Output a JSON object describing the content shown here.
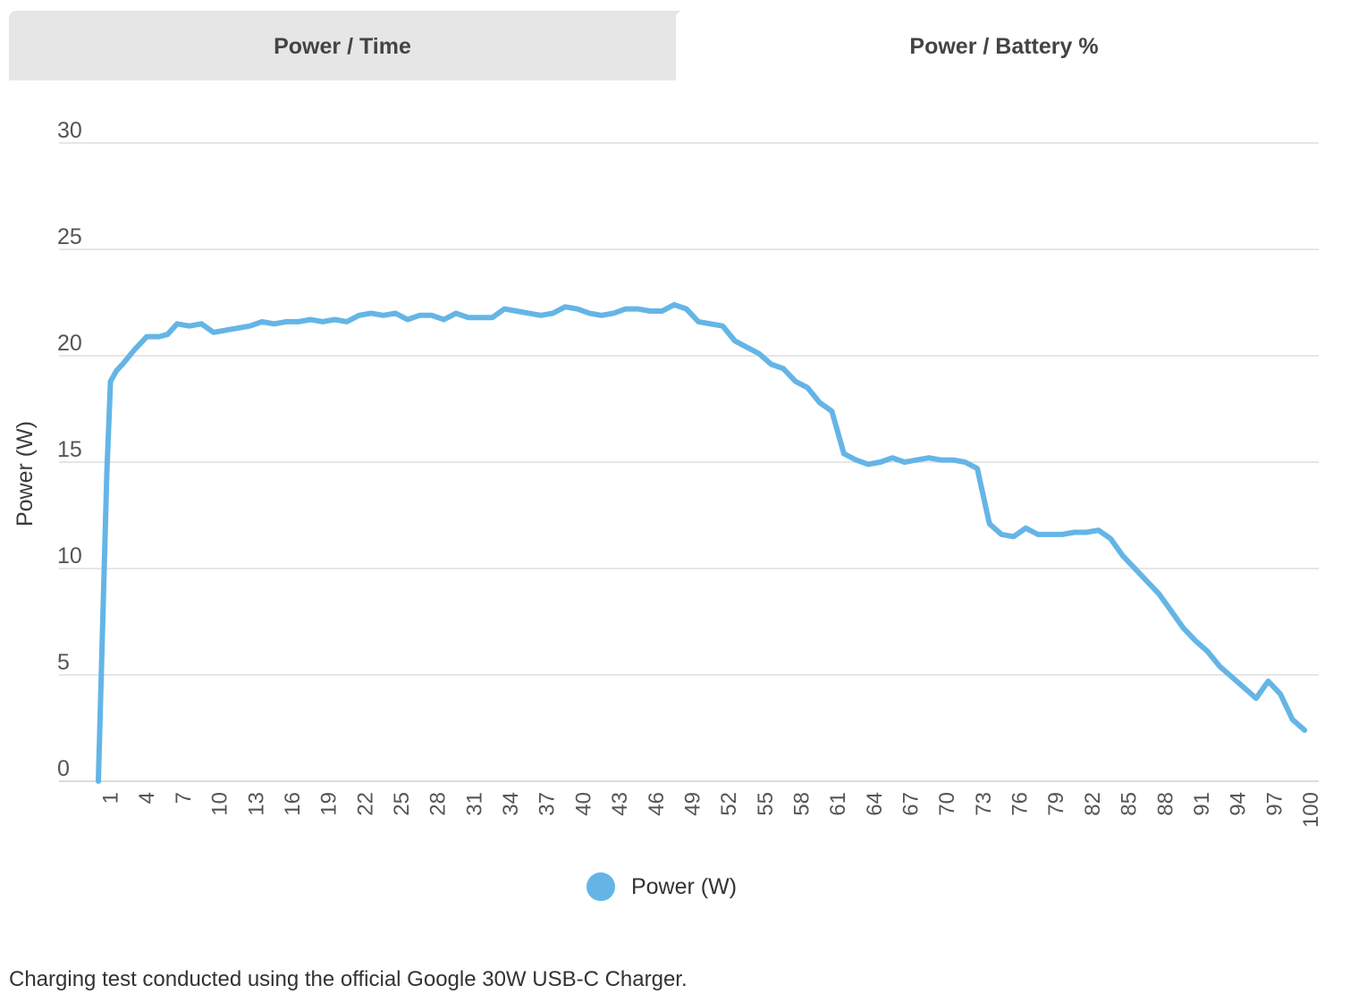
{
  "tabs": [
    {
      "label": "Power / Time",
      "active": false
    },
    {
      "label": "Power / Battery %",
      "active": true
    }
  ],
  "colors": {
    "series": "#64b5e6",
    "grid": "#dedede",
    "axis_text": "#555555"
  },
  "footnote": "Charging test conducted using the official Google 30W USB-C Charger.",
  "chart_data": {
    "type": "line",
    "ylabel": "Power (W)",
    "xlabel": "",
    "ylim": [
      0,
      30
    ],
    "yticks": [
      0,
      5,
      10,
      15,
      20,
      25,
      30
    ],
    "xticks": [
      1,
      4,
      7,
      10,
      13,
      16,
      19,
      22,
      25,
      28,
      31,
      34,
      37,
      40,
      43,
      46,
      49,
      52,
      55,
      58,
      61,
      64,
      67,
      70,
      73,
      76,
      79,
      82,
      85,
      88,
      91,
      94,
      97,
      100
    ],
    "xlim": [
      0,
      100
    ],
    "grid": true,
    "legend_position": "bottom",
    "series": [
      {
        "name": "Power (W)",
        "x": [
          0,
          0.7,
          1,
          1.5,
          2,
          3,
          4,
          5,
          5.7,
          6.5,
          7.5,
          8.5,
          9.5,
          10.5,
          11.5,
          12.5,
          13.5,
          14.5,
          15.5,
          16.5,
          17.5,
          18.5,
          19.5,
          20.5,
          21.5,
          22.5,
          23.5,
          24.5,
          25.5,
          26.5,
          27.5,
          28.5,
          29.5,
          30.5,
          31.5,
          32.5,
          33.5,
          34.5,
          35.5,
          36.5,
          37.5,
          38.5,
          39.5,
          40.5,
          41.5,
          42.5,
          43.5,
          44.5,
          45.5,
          46.5,
          47.5,
          48.5,
          49.5,
          50.5,
          51.5,
          52.5,
          53.5,
          54.5,
          55.5,
          56.5,
          57.5,
          58.5,
          59.5,
          60.5,
          61.5,
          62.5,
          63.5,
          64.5,
          65.5,
          66.5,
          67.5,
          68.5,
          69.5,
          70.5,
          71.5,
          72.5,
          73.5,
          74.5,
          75.5,
          76.5,
          77.5,
          78.5,
          79.5,
          80.5,
          81.5,
          82.5,
          83.5,
          84.5,
          85.5,
          86.5,
          87.5,
          88.5,
          89.5,
          90.5,
          91.5,
          92.5,
          93.5,
          94.5,
          95.5,
          96.5,
          97.5,
          98.5,
          99.5
        ],
        "values": [
          0,
          14.5,
          18.8,
          19.3,
          19.6,
          20.3,
          20.9,
          20.9,
          21.0,
          21.5,
          21.4,
          21.5,
          21.1,
          21.2,
          21.3,
          21.4,
          21.6,
          21.5,
          21.6,
          21.6,
          21.7,
          21.6,
          21.7,
          21.6,
          21.9,
          22.0,
          21.9,
          22.0,
          21.7,
          21.9,
          21.9,
          21.7,
          22.0,
          21.8,
          21.8,
          21.8,
          22.2,
          22.1,
          22.0,
          21.9,
          22.0,
          22.3,
          22.2,
          22.0,
          21.9,
          22.0,
          22.2,
          22.2,
          22.1,
          22.1,
          22.4,
          22.2,
          21.6,
          21.5,
          21.4,
          20.7,
          20.4,
          20.1,
          19.6,
          19.4,
          18.8,
          18.5,
          17.8,
          17.4,
          15.4,
          15.1,
          14.9,
          15.0,
          15.2,
          15.0,
          15.1,
          15.2,
          15.1,
          15.1,
          15.0,
          14.7,
          12.1,
          11.6,
          11.5,
          11.9,
          11.6,
          11.6,
          11.6,
          11.7,
          11.7,
          11.8,
          11.4,
          10.6,
          10.0,
          9.4,
          8.8,
          8.0,
          7.2,
          6.6,
          6.1,
          5.4,
          4.9,
          4.4,
          3.9,
          4.7,
          4.1,
          2.9,
          2.4
        ]
      }
    ]
  }
}
